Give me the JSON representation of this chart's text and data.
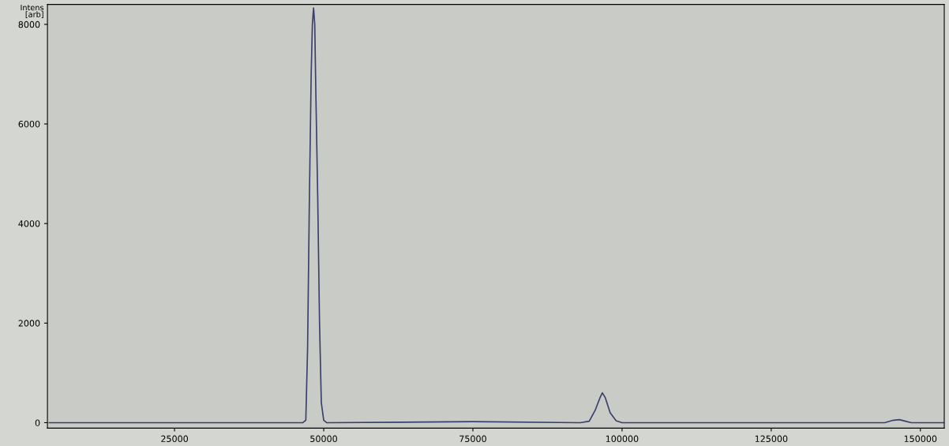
{
  "chart_data": {
    "type": "line",
    "ylabel": "Intens\n[arb]",
    "xlim": [
      3700,
      154000
    ],
    "ylim": [
      -110,
      8400
    ],
    "xticks": [
      25000,
      50000,
      75000,
      100000,
      125000,
      150000
    ],
    "yticks": [
      0,
      2000,
      4000,
      6000,
      8000
    ],
    "grid": false,
    "legend": false,
    "marker": "none",
    "line_style": "solid",
    "series": [
      {
        "color": "#3a3f6e",
        "x": [
          4000,
          46500,
          47000,
          47300,
          47600,
          47900,
          48100,
          48300,
          48500,
          48700,
          49000,
          49300,
          49600,
          50000,
          50500,
          75000,
          93000,
          94500,
          95500,
          96300,
          96700,
          97200,
          98000,
          99000,
          100000,
          144000,
          145500,
          146500,
          147500,
          148500,
          154000
        ],
        "values": [
          0,
          0,
          50,
          1500,
          4500,
          7000,
          8000,
          8330,
          8000,
          6500,
          4500,
          2000,
          400,
          50,
          0,
          20,
          0,
          30,
          250,
          500,
          600,
          500,
          200,
          40,
          0,
          0,
          50,
          60,
          30,
          0,
          0
        ]
      }
    ]
  }
}
